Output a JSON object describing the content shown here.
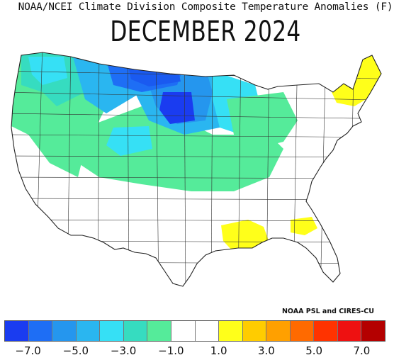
{
  "header": {
    "title": "NOAA/NCEI Climate Division Composite Temperature Anomalies (F)",
    "month": "DECEMBER 2024"
  },
  "credit": "NOAA PSL and CIRES-CU",
  "legend": {
    "colors": [
      "#1a3cf0",
      "#1e6ef5",
      "#2596ee",
      "#2ab6f0",
      "#36e0f5",
      "#36dcc0",
      "#55eb9a",
      "#ffffff",
      "#ffffff",
      "#ffff1a",
      "#ffcc00",
      "#ffa000",
      "#ff6a00",
      "#ff3300",
      "#ee1111",
      "#b40000"
    ],
    "tick_labels": [
      "−7.0",
      "−5.0",
      "−3.0",
      "−1.0",
      "1.0",
      "3.0",
      "5.0",
      "7.0"
    ]
  },
  "palette": {
    "dark_blue": "#1a5af0",
    "blue": "#1e6ef5",
    "mid_blue": "#2596ee",
    "light_blue": "#2ab6f0",
    "cyan": "#36e0f5",
    "teal": "#36dcc0",
    "green": "#55eb9a",
    "white": "#ffffff",
    "yellow": "#ffff1a"
  }
}
